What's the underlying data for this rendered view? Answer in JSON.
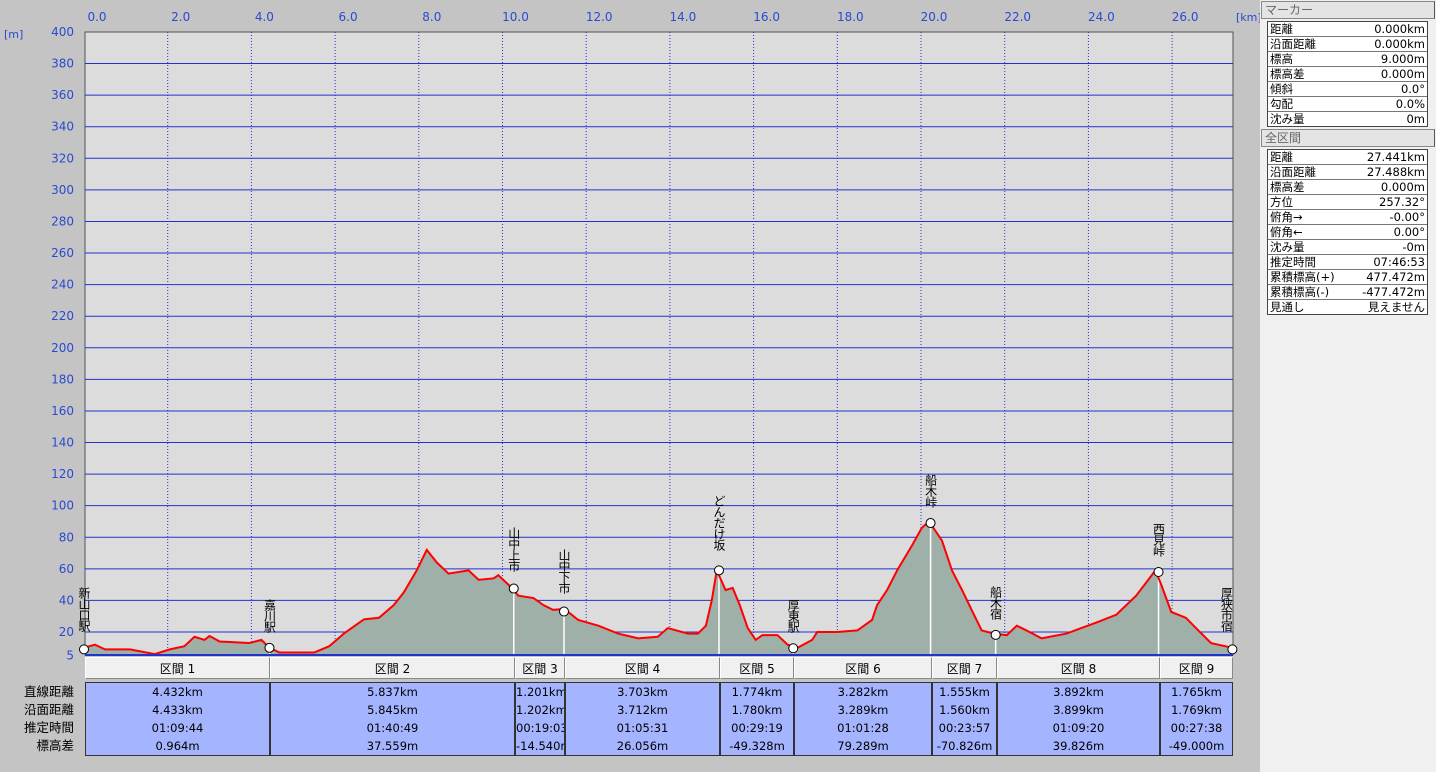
{
  "axes": {
    "y_unit": "[m]",
    "x_unit": "[km]",
    "x_ticks": [
      "0.0",
      "2.0",
      "4.0",
      "6.0",
      "8.0",
      "10.0",
      "12.0",
      "14.0",
      "16.0",
      "18.0",
      "20.0",
      "22.0",
      "24.0",
      "26.0"
    ],
    "y_ticks": [
      "400",
      "380",
      "360",
      "340",
      "320",
      "300",
      "280",
      "260",
      "240",
      "220",
      "200",
      "180",
      "160",
      "140",
      "120",
      "100",
      "80",
      "60",
      "40",
      "20",
      "5"
    ]
  },
  "colors": {
    "profile": "#ff0000",
    "fill": "#9fb0a8",
    "grid": "#2233cc",
    "plot_bg": "#dcdcdc",
    "cell": "#a4b4ff"
  },
  "chart_data": {
    "type": "area",
    "xlabel": "[km]",
    "ylabel": "[m]",
    "xlim": [
      0,
      27.441
    ],
    "ylim": [
      5,
      400
    ],
    "grid": true,
    "profile": [
      [
        0,
        10
      ],
      [
        0.26,
        12
      ],
      [
        0.5,
        9
      ],
      [
        1.1,
        9
      ],
      [
        1.69,
        6
      ],
      [
        2.05,
        9
      ],
      [
        2.4,
        11
      ],
      [
        2.64,
        17
      ],
      [
        2.88,
        15
      ],
      [
        3.0,
        17.5
      ],
      [
        3.24,
        14
      ],
      [
        3.95,
        13
      ],
      [
        4.24,
        15
      ],
      [
        4.43,
        10
      ],
      [
        4.67,
        7
      ],
      [
        5.14,
        7
      ],
      [
        5.5,
        7
      ],
      [
        5.86,
        11
      ],
      [
        6.21,
        19
      ],
      [
        6.69,
        28
      ],
      [
        7.05,
        29
      ],
      [
        7.4,
        37
      ],
      [
        7.64,
        45
      ],
      [
        7.95,
        59
      ],
      [
        8.19,
        72
      ],
      [
        8.43,
        64
      ],
      [
        8.71,
        57
      ],
      [
        9.19,
        59
      ],
      [
        9.43,
        53
      ],
      [
        9.79,
        54
      ],
      [
        9.9,
        56
      ],
      [
        10.14,
        50
      ],
      [
        10.38,
        43
      ],
      [
        10.74,
        41.5
      ],
      [
        10.98,
        37
      ],
      [
        11.21,
        34
      ],
      [
        11.48,
        34.6
      ],
      [
        11.81,
        27.6
      ],
      [
        12.29,
        24
      ],
      [
        12.76,
        19
      ],
      [
        13.24,
        16
      ],
      [
        13.71,
        17
      ],
      [
        13.95,
        22.5
      ],
      [
        14.43,
        19
      ],
      [
        14.67,
        19
      ],
      [
        14.86,
        24
      ],
      [
        15.0,
        40
      ],
      [
        15.12,
        59
      ],
      [
        15.33,
        46.6
      ],
      [
        15.5,
        47.9
      ],
      [
        15.67,
        37
      ],
      [
        15.86,
        22.5
      ],
      [
        16.05,
        15
      ],
      [
        16.21,
        18
      ],
      [
        16.57,
        18
      ],
      [
        16.81,
        12
      ],
      [
        17.05,
        10
      ],
      [
        17.4,
        15
      ],
      [
        17.52,
        20
      ],
      [
        18.0,
        20
      ],
      [
        18.48,
        21
      ],
      [
        18.83,
        27.6
      ],
      [
        18.95,
        37
      ],
      [
        19.19,
        46.6
      ],
      [
        19.43,
        59
      ],
      [
        19.79,
        75
      ],
      [
        20.02,
        86
      ],
      [
        20.19,
        90
      ],
      [
        20.5,
        78
      ],
      [
        20.74,
        59
      ],
      [
        20.98,
        46.6
      ],
      [
        21.21,
        34
      ],
      [
        21.45,
        21
      ],
      [
        21.74,
        19
      ],
      [
        22.05,
        18
      ],
      [
        22.29,
        24
      ],
      [
        22.52,
        21
      ],
      [
        22.88,
        16
      ],
      [
        23.48,
        19
      ],
      [
        23.83,
        22.5
      ],
      [
        24.19,
        26
      ],
      [
        24.67,
        31
      ],
      [
        25.14,
        43
      ],
      [
        25.43,
        53
      ],
      [
        25.6,
        59
      ],
      [
        25.74,
        50
      ],
      [
        25.98,
        32.7
      ],
      [
        26.33,
        29
      ],
      [
        26.57,
        22.5
      ],
      [
        26.93,
        13
      ],
      [
        27.44,
        10
      ]
    ],
    "markers": [
      "新山口駅",
      "嘉川駅",
      "山中上市",
      "山中下市",
      "どんだけ坂",
      "厚東駅",
      "船木峠",
      "船木宿",
      "西見峠",
      "厚狭市宿"
    ]
  },
  "marker_panel": {
    "title": "マーカー",
    "rows": [
      [
        "距離",
        "0.000km"
      ],
      [
        "沿面距離",
        "0.000km"
      ],
      [
        "標高",
        "9.000m"
      ],
      [
        "標高差",
        "0.000m"
      ],
      [
        "傾斜",
        "0.0°"
      ],
      [
        "勾配",
        "0.0%"
      ],
      [
        "沈み量",
        "0m"
      ]
    ]
  },
  "total_panel": {
    "title": "全区間",
    "rows": [
      [
        "距離",
        "27.441km"
      ],
      [
        "沿面距離",
        "27.488km"
      ],
      [
        "標高差",
        "0.000m"
      ],
      [
        "方位",
        "257.32°"
      ],
      [
        "俯角→",
        "-0.00°"
      ],
      [
        "俯角←",
        "0.00°"
      ],
      [
        "沈み量",
        "-0m"
      ],
      [
        "推定時間",
        "07:46:53"
      ],
      [
        "累積標高(+)",
        "477.472m"
      ],
      [
        "累積標高(-)",
        "-477.472m"
      ],
      [
        "見通し",
        "見えません"
      ]
    ]
  },
  "table": {
    "row_labels": [
      "直線距離",
      "沿面距離",
      "推定時間",
      "標高差"
    ],
    "sections": [
      {
        "name": "区間 1",
        "vals": [
          "4.432km",
          "4.433km",
          "01:09:44",
          "0.964m"
        ]
      },
      {
        "name": "区間 2",
        "vals": [
          "5.837km",
          "5.845km",
          "01:40:49",
          "37.559m"
        ]
      },
      {
        "name": "区間 3",
        "vals": [
          "1.201km",
          "1.202km",
          "00:19:03",
          "-14.540m"
        ]
      },
      {
        "name": "区間 4",
        "vals": [
          "3.703km",
          "3.712km",
          "01:05:31",
          "26.056m"
        ]
      },
      {
        "name": "区間 5",
        "vals": [
          "1.774km",
          "1.780km",
          "00:29:19",
          "-49.328m"
        ]
      },
      {
        "name": "区間 6",
        "vals": [
          "3.282km",
          "3.289km",
          "01:01:28",
          "79.289m"
        ]
      },
      {
        "name": "区間 7",
        "vals": [
          "1.555km",
          "1.560km",
          "00:23:57",
          "-70.826m"
        ]
      },
      {
        "name": "区間 8",
        "vals": [
          "3.892km",
          "3.899km",
          "01:09:20",
          "39.826m"
        ]
      },
      {
        "name": "区間 9",
        "vals": [
          "1.765km",
          "1.769km",
          "00:27:38",
          "-49.000m"
        ]
      }
    ]
  }
}
